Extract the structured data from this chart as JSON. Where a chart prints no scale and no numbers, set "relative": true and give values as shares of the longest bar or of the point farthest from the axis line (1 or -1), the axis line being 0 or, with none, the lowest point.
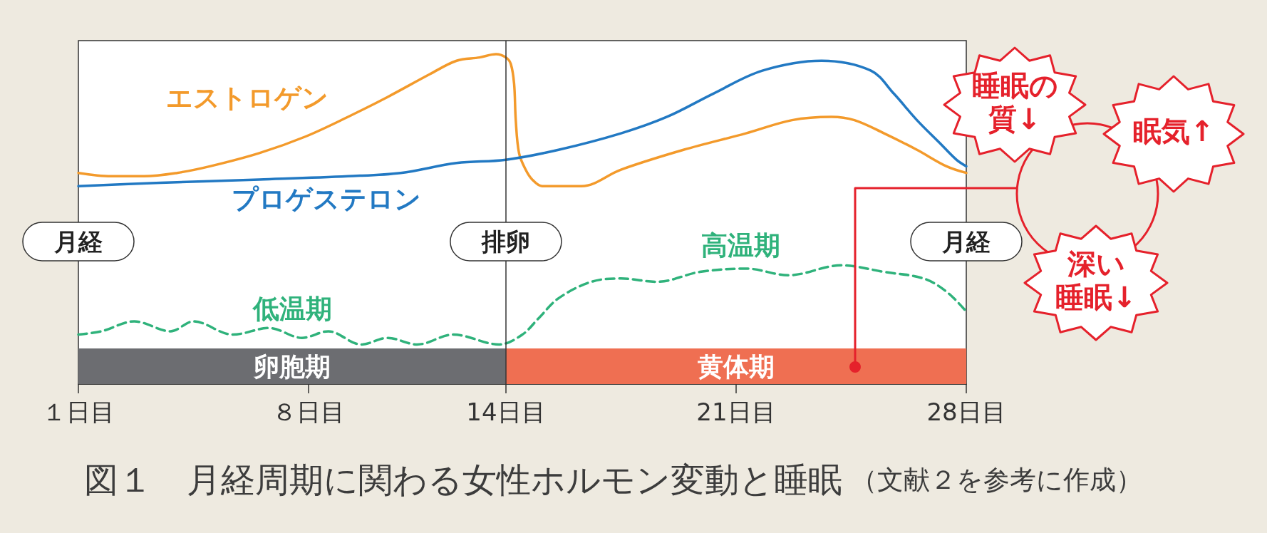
{
  "chart_data": {
    "type": "line",
    "title": "図１　月経周期に関わる女性ホルモン変動と睡眠",
    "relative": true,
    "xlim": [
      1,
      28
    ],
    "xticks": [
      {
        "value": 1,
        "label": "１日目"
      },
      {
        "value": 8,
        "label": "８日目"
      },
      {
        "value": 14,
        "label": "14日目"
      },
      {
        "value": 21,
        "label": "21日目"
      },
      {
        "value": 28,
        "label": "28日目"
      }
    ],
    "series": [
      {
        "name": "エストロゲン",
        "color": "#f39a2b",
        "x": [
          1,
          2,
          3,
          4,
          5,
          6.5,
          7.9,
          9.2,
          10.4,
          11.7,
          12.5,
          13.2,
          13.7,
          14,
          14.15,
          14.25,
          14.3,
          14.4,
          14.6,
          14.8,
          15.1,
          15.6,
          16.3,
          17.5,
          19.4,
          21.3,
          22.7,
          23.9,
          24.6,
          25.5,
          26.5,
          27.4,
          28
        ],
        "values": [
          0.64,
          0.63,
          0.63,
          0.64,
          0.66,
          0.7,
          0.75,
          0.81,
          0.87,
          0.94,
          0.98,
          0.99,
          1.0,
          0.99,
          0.97,
          0.91,
          0.8,
          0.7,
          0.65,
          0.62,
          0.6,
          0.6,
          0.6,
          0.65,
          0.71,
          0.76,
          0.8,
          0.81,
          0.8,
          0.76,
          0.71,
          0.66,
          0.64
        ]
      },
      {
        "name": "プロゲステロン",
        "color": "#2279c3",
        "x": [
          1,
          3.5,
          6.5,
          9.2,
          10.8,
          12.5,
          14,
          15.6,
          17.5,
          18.9,
          20.3,
          21.8,
          23.6,
          25.1,
          25.8,
          26.5,
          27.2,
          27.7,
          28
        ],
        "values": [
          0.6,
          0.61,
          0.62,
          0.63,
          0.64,
          0.67,
          0.68,
          0.71,
          0.76,
          0.81,
          0.88,
          0.95,
          0.98,
          0.95,
          0.88,
          0.8,
          0.73,
          0.68,
          0.66
        ]
      },
      {
        "color": "#2fb27b",
        "line_style": "dashed",
        "x": [
          1,
          1.7,
          2.7,
          3.8,
          4.5,
          5.7,
          6.8,
          7.8,
          8.6,
          9.6,
          10.4,
          11.3,
          12.4,
          13.8,
          14.5,
          15,
          15.6,
          16.6,
          17.5,
          18.6,
          19.9,
          21.3,
          22.6,
          24.2,
          25.5,
          26.7,
          27.4,
          28
        ],
        "values": [
          0.15,
          0.16,
          0.19,
          0.16,
          0.19,
          0.15,
          0.17,
          0.14,
          0.16,
          0.12,
          0.14,
          0.12,
          0.15,
          0.12,
          0.15,
          0.2,
          0.26,
          0.31,
          0.32,
          0.31,
          0.34,
          0.35,
          0.33,
          0.36,
          0.34,
          0.32,
          0.28,
          0.22
        ]
      }
    ],
    "ref_lines": [
      {
        "axis": "x",
        "value": 14,
        "label": "排卵"
      }
    ],
    "bands": [
      {
        "axis": "x",
        "from": 1,
        "to": 14,
        "label": "卵胞期",
        "color": "#6c6d71"
      },
      {
        "axis": "x",
        "from": 14,
        "to": 28,
        "label": "黄体期",
        "color": "#ef6f52"
      }
    ],
    "annotations": [
      "月経",
      "月経",
      "低温期",
      "高温期",
      "睡眠の質↓",
      "眠気↑",
      "深い睡眠↓",
      "（文献２を参考に作成）"
    ],
    "marker": "none",
    "line_style": "solid"
  }
}
